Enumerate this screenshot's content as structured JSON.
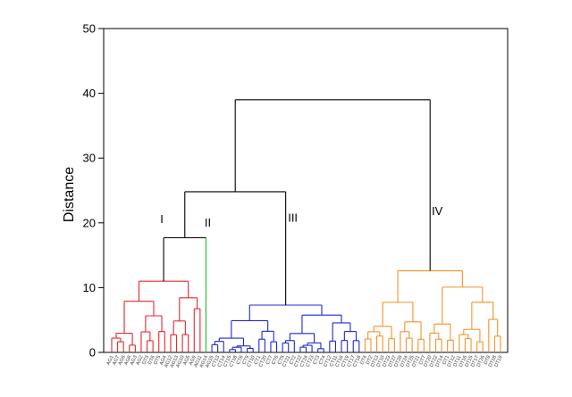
{
  "chart_data": {
    "type": "dendrogram",
    "title": "",
    "xlabel": "",
    "ylabel": "Distance",
    "ylim": [
      0,
      50
    ],
    "yticks": [
      0,
      10,
      20,
      30,
      40,
      50
    ],
    "grid": false,
    "colors": {
      "I": "#e8262c",
      "II": "#1fc11f",
      "III": "#1f28d0",
      "IV": "#f4922a",
      "root": "#000000"
    },
    "clusters": [
      {
        "id": "I",
        "label": "I",
        "leaves": [
          "AG1",
          "AG7",
          "AG6",
          "AG8",
          "AG3",
          "AG2",
          "DT3",
          "DT6",
          "DT5",
          "AG4",
          "AG12",
          "AG13",
          "AG10",
          "AG5",
          "AG9",
          "AG11"
        ]
      },
      {
        "id": "II",
        "label": "II",
        "leaves": [
          "AG14"
        ]
      },
      {
        "id": "III",
        "label": "III",
        "leaves": [
          "AG15",
          "CT13",
          "CT14",
          "CT15",
          "CT18",
          "CT8",
          "CT9",
          "CT10",
          "CT1",
          "CT20",
          "CT7",
          "CT6",
          "CT5",
          "CT21",
          "CT2",
          "CT22",
          "CT24",
          "CT23",
          "CT3",
          "CT4",
          "CT12",
          "CT11",
          "CT16",
          "CT19",
          "CT17",
          "CT18"
        ]
      },
      {
        "id": "IV",
        "label": "IV",
        "leaves": [
          "DT4",
          "DT2",
          "DT13",
          "DT10",
          "DT23",
          "DT27",
          "DT28",
          "DT24",
          "DT25",
          "DT21",
          "DT7",
          "DT20",
          "DT22",
          "DT14",
          "DT1",
          "DT12",
          "DT11",
          "DT16",
          "DT15",
          "DT17",
          "DT26",
          "DT8",
          "DT18",
          "DT19"
        ]
      }
    ],
    "merge_heights": {
      "I": 11,
      "I_II": 17.7,
      "I_II_III": 24.8,
      "root": 39,
      "III": 7.3,
      "IV": 12.6
    }
  }
}
